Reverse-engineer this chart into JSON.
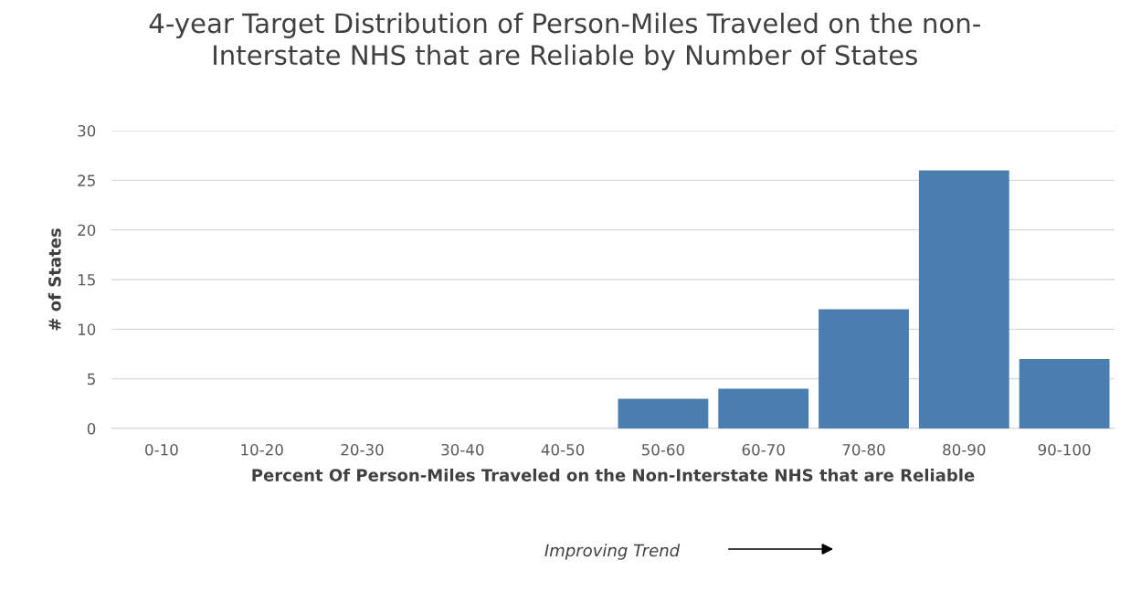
{
  "chart_data": {
    "type": "bar",
    "title": "4-year Target Distribution of Person-Miles Traveled on the non-\nInterstate NHS that are Reliable by Number of States",
    "xlabel": "Percent Of Person-Miles Traveled on the Non-Interstate NHS that are Reliable",
    "ylabel": "# of States",
    "categories": [
      "0-10",
      "10-20",
      "20-30",
      "30-40",
      "40-50",
      "50-60",
      "60-70",
      "70-80",
      "80-90",
      "90-100"
    ],
    "values": [
      0,
      0,
      0,
      0,
      0,
      3,
      4,
      12,
      26,
      7
    ],
    "color": "#4a7eb0",
    "ylim": [
      0,
      30
    ],
    "yticks": [
      0,
      5,
      10,
      15,
      20,
      25,
      30
    ],
    "grid": "y",
    "legend": false,
    "annotations": [
      "Improving Trend"
    ]
  }
}
